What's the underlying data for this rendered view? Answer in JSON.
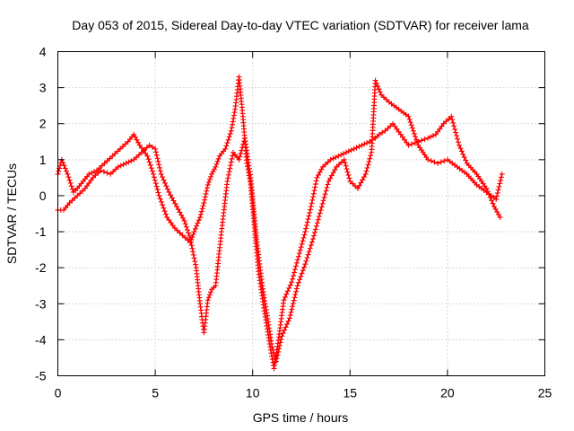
{
  "chart_data": {
    "type": "scatter",
    "title": "Day 053 of 2015, Sidereal Day-to-day VTEC variation (SDTVAR) for receiver lama",
    "xlabel": "GPS time / hours",
    "ylabel": "SDTVAR / TECUs",
    "xlim": [
      0,
      25
    ],
    "ylim": [
      -5,
      4
    ],
    "grid": true,
    "marker": "plus",
    "color": "#ff0000",
    "xticks": [
      0,
      5,
      10,
      15,
      20,
      25
    ],
    "yticks": [
      -5,
      -4,
      -3,
      -2,
      -1,
      0,
      1,
      2,
      3,
      4
    ],
    "series": [
      {
        "name": "trace-1",
        "x": [
          0.0,
          0.2,
          0.5,
          0.8,
          1.0,
          1.3,
          1.6,
          2.0,
          2.4,
          2.8,
          3.2,
          3.6,
          3.9,
          4.2,
          4.6,
          4.9,
          5.2,
          5.6,
          6.0,
          6.4,
          6.8,
          7.0,
          7.3,
          7.5,
          7.7,
          7.9,
          8.1,
          8.3,
          8.6,
          8.9,
          9.1,
          9.3,
          9.5,
          9.7,
          9.9,
          10.1,
          10.3,
          10.6,
          10.9,
          11.1,
          11.3,
          11.6,
          12.0,
          12.4,
          12.7,
          13.0,
          13.3,
          13.6,
          14.0,
          14.4,
          14.8,
          15.2,
          15.6,
          16.0,
          16.3,
          16.5,
          16.8,
          17.2,
          17.6,
          18.0,
          18.5,
          19.0,
          19.4,
          19.8,
          20.2,
          20.6,
          21.0,
          21.5,
          22.0,
          22.4,
          22.7
        ],
        "y": [
          0.6,
          1.0,
          0.6,
          0.1,
          0.2,
          0.4,
          0.6,
          0.7,
          0.9,
          1.1,
          1.3,
          1.5,
          1.7,
          1.4,
          1.1,
          0.6,
          0.0,
          -0.6,
          -0.9,
          -1.1,
          -1.3,
          -1.0,
          -0.6,
          -0.2,
          0.3,
          0.6,
          0.8,
          1.1,
          1.3,
          1.8,
          2.4,
          3.3,
          2.2,
          0.9,
          0.3,
          -0.9,
          -2.1,
          -3.2,
          -4.2,
          -4.8,
          -4.1,
          -2.9,
          -2.4,
          -1.6,
          -1.0,
          -0.3,
          0.5,
          0.8,
          1.0,
          1.1,
          1.2,
          1.3,
          1.4,
          1.5,
          1.6,
          1.7,
          1.8,
          2.0,
          1.7,
          1.4,
          1.5,
          1.6,
          1.7,
          2.0,
          2.2,
          1.4,
          0.9,
          0.6,
          0.2,
          -0.3,
          -0.6
        ]
      },
      {
        "name": "trace-2",
        "x": [
          0.0,
          0.3,
          0.6,
          1.0,
          1.4,
          1.8,
          2.2,
          2.7,
          3.1,
          3.5,
          3.9,
          4.3,
          4.7,
          5.0,
          5.3,
          5.7,
          6.1,
          6.5,
          6.8,
          7.1,
          7.3,
          7.5,
          7.7,
          7.9,
          8.1,
          8.4,
          8.7,
          9.0,
          9.3,
          9.6,
          9.9,
          10.2,
          10.5,
          10.8,
          11.0,
          11.2,
          11.5,
          11.9,
          12.3,
          12.7,
          13.1,
          13.5,
          13.9,
          14.3,
          14.7,
          15.0,
          15.4,
          15.8,
          16.1,
          16.3,
          16.6,
          17.0,
          17.5,
          18.0,
          18.5,
          19.0,
          19.5,
          20.0,
          20.5,
          21.0,
          21.5,
          22.0,
          22.5,
          22.8
        ],
        "y": [
          -0.4,
          -0.4,
          -0.2,
          0.0,
          0.2,
          0.5,
          0.7,
          0.6,
          0.8,
          0.9,
          1.0,
          1.2,
          1.4,
          1.3,
          0.6,
          0.1,
          -0.3,
          -0.7,
          -1.2,
          -2.0,
          -3.0,
          -3.8,
          -2.9,
          -2.6,
          -2.5,
          -1.0,
          0.4,
          1.2,
          1.0,
          1.6,
          0.5,
          -1.2,
          -2.5,
          -3.5,
          -4.2,
          -4.6,
          -3.9,
          -3.4,
          -2.5,
          -1.9,
          -1.2,
          -0.4,
          0.4,
          0.8,
          1.0,
          0.4,
          0.2,
          0.6,
          1.2,
          3.2,
          2.8,
          2.6,
          2.4,
          2.2,
          1.4,
          1.0,
          0.9,
          1.0,
          0.8,
          0.6,
          0.3,
          0.1,
          -0.1,
          0.6
        ]
      }
    ]
  }
}
